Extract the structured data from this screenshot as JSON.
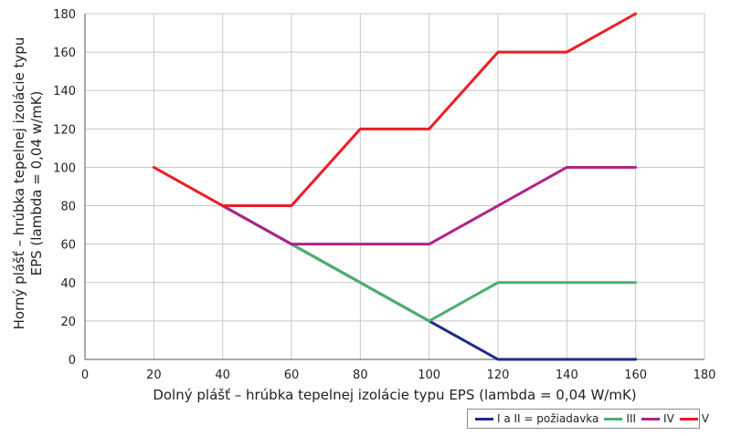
{
  "chart_data": {
    "type": "line",
    "title": "",
    "xlabel": "Dolný plášť – hrúbka tepelnej izolácie typu EPS (lambda = 0,04 W/mK)",
    "ylabel_lines": [
      "Horný plášť – hrúbka tepelnej izolácie typu",
      "EPS (lambda = 0,04 w/mK)"
    ],
    "xlim": [
      0,
      180
    ],
    "ylim": [
      0,
      180
    ],
    "xticks": [
      0,
      20,
      40,
      60,
      80,
      100,
      120,
      140,
      160,
      180
    ],
    "yticks": [
      0,
      20,
      40,
      60,
      80,
      100,
      120,
      140,
      160,
      180
    ],
    "grid": true,
    "legend_position": "bottom-right",
    "series": [
      {
        "name": "I a II = požiadavka",
        "color": "#1f2a8c",
        "x": [
          40,
          60,
          80,
          100,
          120,
          140,
          160
        ],
        "y": [
          80,
          60,
          40,
          20,
          0,
          0,
          0
        ]
      },
      {
        "name": "III",
        "color": "#4caf6e",
        "x": [
          40,
          60,
          80,
          100,
          120,
          140,
          160
        ],
        "y": [
          80,
          60,
          40,
          20,
          40,
          40,
          40
        ]
      },
      {
        "name": "IV",
        "color": "#b0228c",
        "x": [
          40,
          60,
          80,
          100,
          120,
          140,
          160
        ],
        "y": [
          80,
          60,
          60,
          60,
          80,
          100,
          100
        ]
      },
      {
        "name": "V",
        "color": "#ee1c24",
        "x": [
          20,
          40,
          60,
          80,
          100,
          120,
          140,
          160
        ],
        "y": [
          100,
          80,
          80,
          120,
          120,
          160,
          160,
          180
        ]
      }
    ]
  }
}
